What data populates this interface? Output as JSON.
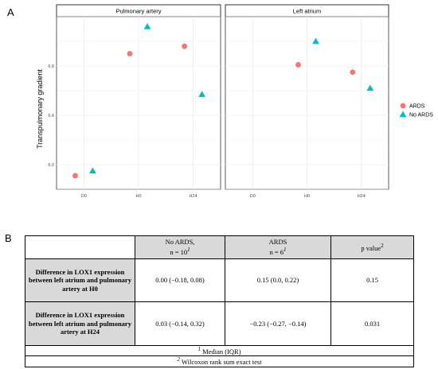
{
  "panel_a_label": "A",
  "panel_b_label": "B",
  "chart_data": {
    "type": "scatter",
    "ylabel": "Transpulmonary gradient",
    "xlabel": "",
    "categories": [
      "D0",
      "H0",
      "H24"
    ],
    "ylim": [
      5.8,
      7.2
    ],
    "yticks": [
      6.0,
      6.4,
      6.8
    ],
    "grid": true,
    "legend_position": "right",
    "facets": [
      {
        "title": "Pulmonary artery",
        "series": [
          {
            "name": "ARDS",
            "x": [
              "D0",
              "H0",
              "H24"
            ],
            "y": [
              5.91,
              6.9,
              6.96
            ]
          },
          {
            "name": "No ARDS",
            "x": [
              "D0",
              "H0",
              "H24"
            ],
            "y": [
              5.95,
              7.12,
              6.57
            ]
          }
        ]
      },
      {
        "title": "Left atrium",
        "series": [
          {
            "name": "ARDS",
            "x": [
              "H0",
              "H24"
            ],
            "y": [
              6.81,
              6.75
            ]
          },
          {
            "name": "No ARDS",
            "x": [
              "H0",
              "H24"
            ],
            "y": [
              7.0,
              6.62
            ]
          }
        ]
      }
    ],
    "colors": {
      "ARDS": "#f8766d",
      "No ARDS": "#00bfc4"
    }
  },
  "table": {
    "headers": {
      "no_ards_top": "No ARDS,",
      "no_ards_bottom": "n = 10",
      "no_ards_sup": "1",
      "ards_top": "ARDS",
      "ards_bottom": "n = 6",
      "ards_sup": "1",
      "pvalue": "p value",
      "pvalue_sup": "2"
    },
    "rows": [
      {
        "label": "Difference in LOX1 expression between left atrium and pulmonary artery at H0",
        "no_ards": "0.00 (−0.18, 0.08)",
        "ards": "0.15 (0.0, 0.22)",
        "p": "0.15"
      },
      {
        "label": "Difference in LOX1 expression between left atrium and pulmonary artery at H24",
        "no_ards": "0.03 (−0.14, 0.32)",
        "ards": "−0.23 (−0.27, −0.14)",
        "p": "0.031"
      }
    ],
    "footnote1_sup": "1",
    "footnote1": " Median (IQR)",
    "footnote2_sup": "2",
    "footnote2": " Wilcoxon rank sum exact test"
  }
}
